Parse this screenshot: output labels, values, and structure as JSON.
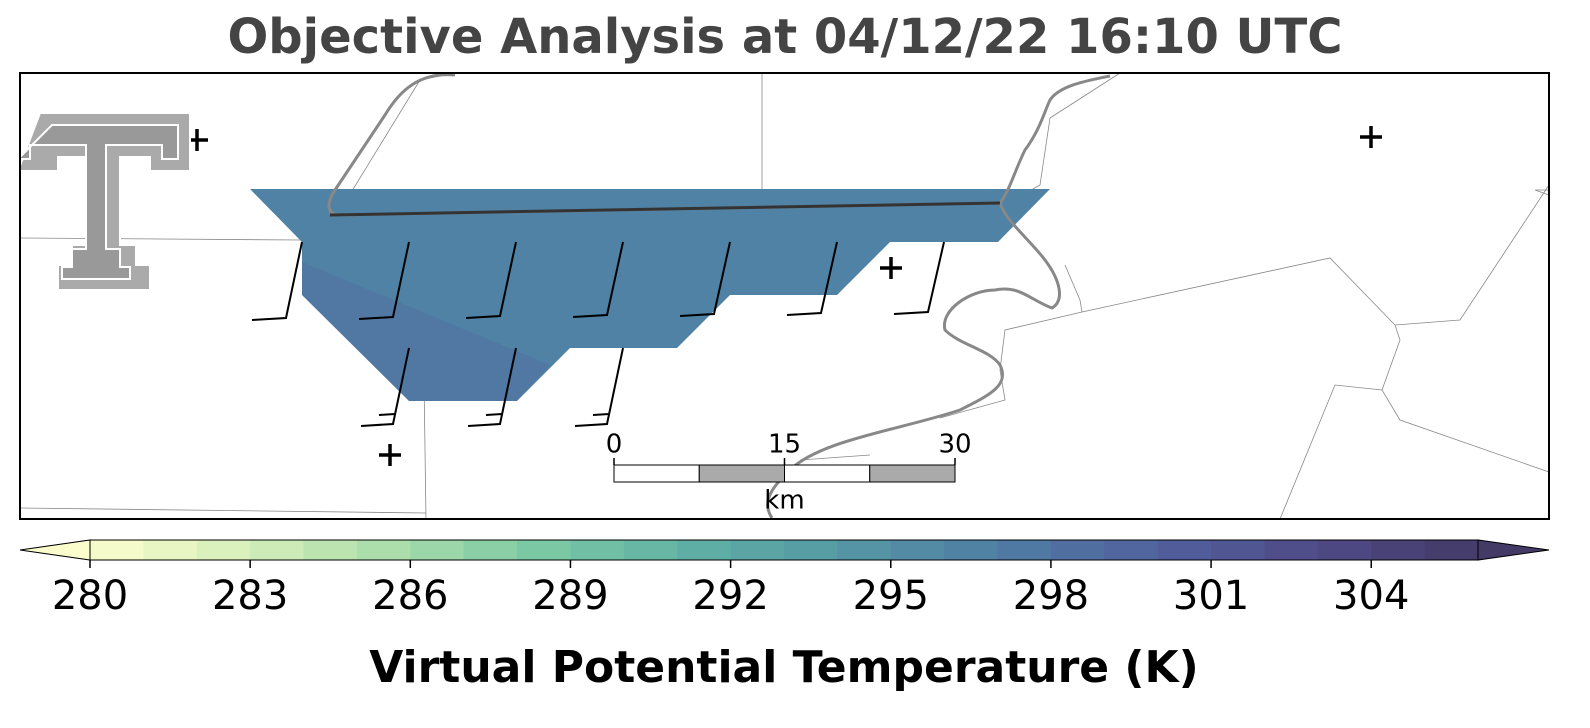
{
  "title": "Objective Analysis at 04/12/22 16:10 UTC",
  "scale_bar": {
    "ticks": [
      0,
      15,
      30
    ],
    "unit": "km"
  },
  "colorbar": {
    "label": "Virtual Potential Temperature (K)",
    "clim": [
      280,
      306
    ],
    "step": 1,
    "ticks": [
      280,
      283,
      286,
      289,
      292,
      295,
      298,
      301,
      304
    ],
    "colormap": [
      "#fbfdcd",
      "#d6efbb",
      "#a6dca9",
      "#78c7a5",
      "#5eaea5",
      "#5494a4",
      "#4f7aa2",
      "#515f9c",
      "#4e4a85",
      "#433a66"
    ],
    "extend": "both"
  }
}
